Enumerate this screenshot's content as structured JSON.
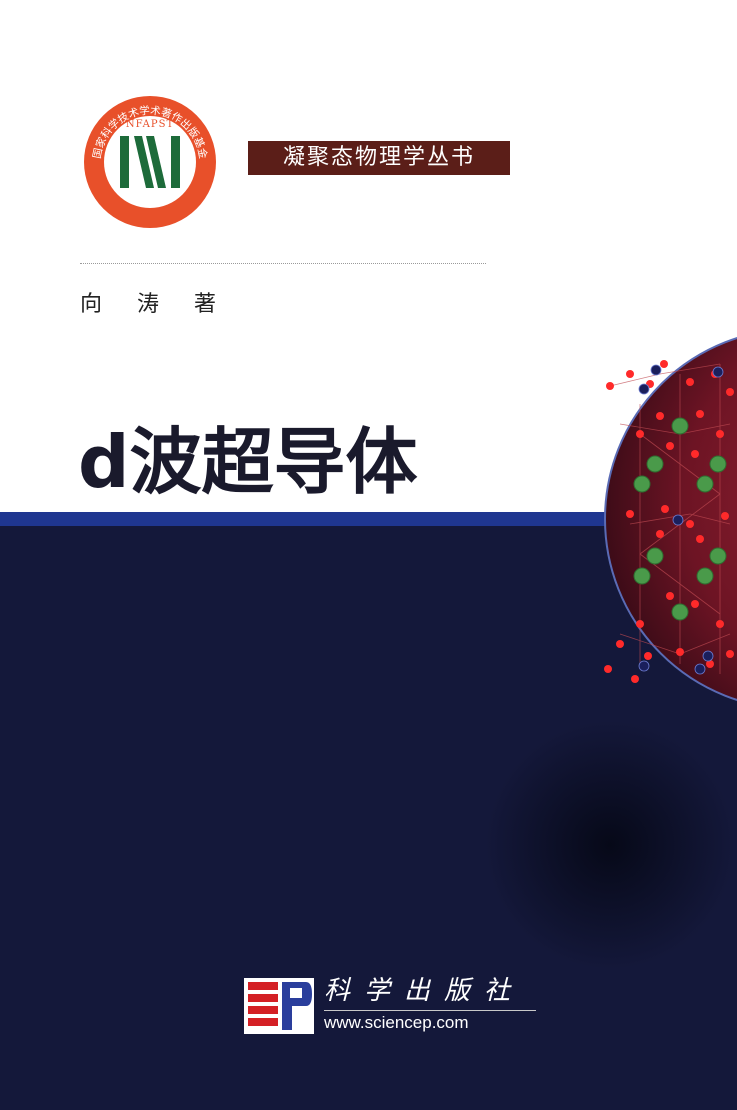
{
  "series": {
    "label": "凝聚态物理学丛书"
  },
  "fund_seal": {
    "arc_text": "国家科学技术学术著作出版基金",
    "acronym": "NFAPST",
    "icon": "book-stripes-icon",
    "colors": {
      "ring": "#e8502a",
      "stripes": "#1d6b3a"
    }
  },
  "author": {
    "line": "向 涛 著"
  },
  "title": {
    "text": "d波超导体"
  },
  "publisher": {
    "name": "科学出版社",
    "url": "www.sciencep.com",
    "logo_icon": "sp-publisher-logo-icon",
    "colors": {
      "red": "#d42025",
      "blue": "#2a3e9c"
    }
  },
  "colors": {
    "navy": "#14183a",
    "blue_band": "#1f3690",
    "series_box": "#5b1e18",
    "sphere": "#7d1a2a"
  }
}
